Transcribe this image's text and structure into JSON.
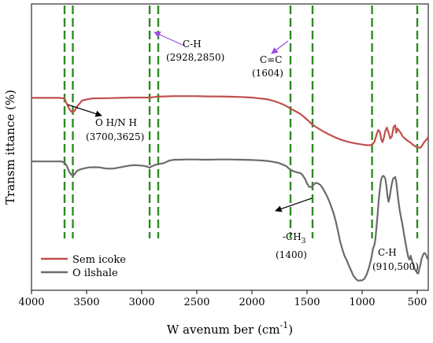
{
  "chart_data": {
    "type": "line",
    "title": "",
    "xlabel": "W avenum ber (cm",
    "xlabel_sup": "-1",
    "xlabel_close": ")",
    "ylabel": "Transm ittance (%)",
    "xlim": [
      4000,
      400
    ],
    "x_reversed": true,
    "y_ticks_shown": false,
    "x_ticks": [
      4000,
      3500,
      3000,
      2500,
      2000,
      1500,
      1000,
      500
    ],
    "x_tick_labels": [
      "4000",
      "3500",
      "3000",
      "2500",
      "2000",
      "1500",
      "1000",
      "500"
    ],
    "grid": false,
    "legend_position": "bottom-left",
    "colors": {
      "Semicoke": "#c0504d",
      "Oilshale": "#6b6b6b",
      "marker_lines": "#2e8b22",
      "arrow_purple": "#9a4ce0",
      "arrow_black": "#000000"
    },
    "marker_lines_x": [
      3700,
      3625,
      2928,
      2850,
      1650,
      1450,
      910,
      500
    ],
    "series": [
      {
        "name": "Sem icoke",
        "x": [
          4000,
          3750,
          3700,
          3690,
          3660,
          3640,
          3625,
          3610,
          3580,
          3540,
          3450,
          3300,
          3200,
          3100,
          3000,
          2928,
          2900,
          2870,
          2850,
          2800,
          2700,
          2600,
          2500,
          2400,
          2300,
          2200,
          2100,
          2000,
          1950,
          1900,
          1850,
          1800,
          1750,
          1700,
          1650,
          1604,
          1560,
          1520,
          1480,
          1450,
          1400,
          1350,
          1300,
          1250,
          1200,
          1150,
          1100,
          1050,
          1000,
          960,
          930,
          910,
          890,
          870,
          855,
          840,
          825,
          815,
          800,
          790,
          775,
          760,
          745,
          730,
          715,
          700,
          690,
          680,
          670,
          650,
          630,
          600,
          580,
          560,
          545,
          530,
          515,
          500,
          485,
          470,
          455,
          440,
          420,
          400
        ],
        "y": [
          67.2,
          67.2,
          67.0,
          66.0,
          63.6,
          62.4,
          62.3,
          62.6,
          64.5,
          66.3,
          67.0,
          67.1,
          67.2,
          67.3,
          67.3,
          67.3,
          67.4,
          67.6,
          67.6,
          67.7,
          67.8,
          67.8,
          67.8,
          67.7,
          67.7,
          67.6,
          67.5,
          67.3,
          67.1,
          66.9,
          66.6,
          66.1,
          65.4,
          64.6,
          63.5,
          62.5,
          61.6,
          60.3,
          58.9,
          57.8,
          56.6,
          55.4,
          54.4,
          53.5,
          52.7,
          52.1,
          51.6,
          51.2,
          50.9,
          50.7,
          50.7,
          50.9,
          51.7,
          54.2,
          56.0,
          55.4,
          52.5,
          51.7,
          53.7,
          55.6,
          56.8,
          55.0,
          53.0,
          53.8,
          57.0,
          57.6,
          55.0,
          56.5,
          56.0,
          55.0,
          53.6,
          52.6,
          52.0,
          51.6,
          51.0,
          50.6,
          50.2,
          50.0,
          49.8,
          49.8,
          50.6,
          51.6,
          52.5,
          53.5
        ]
      },
      {
        "name": "O ilshale",
        "x": [
          4000,
          3800,
          3730,
          3700,
          3680,
          3660,
          3640,
          3625,
          3610,
          3590,
          3560,
          3520,
          3480,
          3430,
          3380,
          3320,
          3260,
          3200,
          3150,
          3100,
          3060,
          3020,
          2990,
          2960,
          2945,
          2928,
          2915,
          2890,
          2870,
          2850,
          2830,
          2800,
          2750,
          2700,
          2650,
          2600,
          2550,
          2500,
          2450,
          2400,
          2300,
          2200,
          2100,
          2000,
          1950,
          1900,
          1870,
          1830,
          1800,
          1760,
          1720,
          1690,
          1660,
          1640,
          1620,
          1600,
          1580,
          1560,
          1540,
          1520,
          1500,
          1480,
          1460,
          1440,
          1420,
          1400,
          1380,
          1360,
          1340,
          1320,
          1300,
          1280,
          1260,
          1240,
          1220,
          1200,
          1180,
          1160,
          1140,
          1120,
          1100,
          1080,
          1060,
          1040,
          1020,
          1000,
          980,
          960,
          940,
          920,
          900,
          890,
          880,
          870,
          860,
          850,
          840,
          830,
          820,
          810,
          800,
          790,
          780,
          770,
          760,
          750,
          740,
          730,
          720,
          710,
          700,
          690,
          680,
          670,
          660,
          650,
          640,
          630,
          620,
          610,
          600,
          590,
          580,
          570,
          560,
          550,
          540,
          530,
          520,
          510,
          500,
          490,
          480,
          470,
          460,
          450,
          440,
          430,
          420,
          410,
          400
        ],
        "y": [
          45.0,
          45.0,
          45.0,
          44.6,
          43.5,
          41.5,
          40.4,
          40.1,
          40.5,
          41.6,
          42.2,
          42.6,
          42.9,
          43.0,
          42.9,
          42.5,
          42.5,
          42.9,
          43.3,
          43.6,
          43.7,
          43.6,
          43.5,
          43.3,
          43.1,
          42.8,
          43.2,
          43.6,
          43.9,
          44.0,
          44.2,
          44.4,
          45.3,
          45.6,
          45.6,
          45.7,
          45.7,
          45.7,
          45.6,
          45.6,
          45.7,
          45.7,
          45.6,
          45.5,
          45.4,
          45.3,
          45.2,
          45.0,
          44.8,
          44.5,
          43.9,
          43.4,
          42.4,
          41.9,
          41.5,
          41.3,
          41.1,
          40.9,
          40.2,
          39.0,
          37.3,
          36.1,
          36.1,
          36.9,
          37.5,
          37.3,
          36.8,
          35.8,
          34.4,
          33.0,
          31.2,
          29.2,
          27.0,
          24.2,
          20.8,
          17.1,
          14.4,
          12.0,
          10.5,
          8.6,
          6.9,
          5.1,
          4.1,
          3.4,
          3.4,
          3.5,
          4.0,
          5.4,
          7.6,
          10.6,
          14.8,
          15.6,
          17.8,
          22.0,
          26.2,
          31.4,
          35.0,
          38.2,
          39.5,
          40.0,
          39.7,
          39.0,
          36.5,
          32.8,
          30.9,
          32.6,
          35.2,
          37.3,
          38.9,
          39.3,
          39.6,
          37.8,
          34.2,
          31.0,
          28.1,
          26.0,
          24.1,
          22.0,
          19.5,
          17.3,
          15.2,
          13.2,
          11.3,
          10.7,
          12.1,
          10.7,
          9.3,
          8.1,
          7.2,
          6.7,
          6.0,
          5.9,
          7.7,
          9.1,
          11.1,
          12.1,
          12.9,
          13.0,
          12.3,
          11.2,
          10.8
        ]
      }
    ],
    "annotations": [
      {
        "text": "C-H",
        "sub": "(2928,2850)"
      },
      {
        "text": "C=C",
        "sub": "(1604)"
      },
      {
        "text": "O H/N H",
        "sub": "(3700,3625)"
      },
      {
        "text": "-CH",
        "text_sub": "3",
        "sub": "(1400)"
      },
      {
        "text": "C-H",
        "sub": "(910,500)"
      }
    ]
  }
}
